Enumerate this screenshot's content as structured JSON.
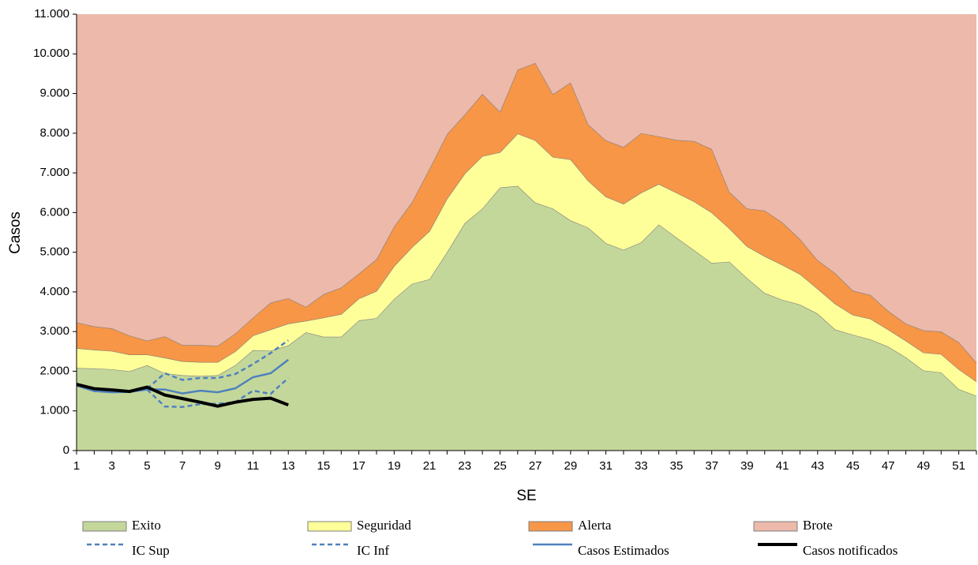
{
  "chart_data": {
    "type": "endemic-channel",
    "y_label": "Casos",
    "x_label": "SE",
    "x": [
      1,
      2,
      3,
      4,
      5,
      6,
      7,
      8,
      9,
      10,
      11,
      12,
      13,
      14,
      15,
      16,
      17,
      18,
      19,
      20,
      21,
      22,
      23,
      24,
      25,
      26,
      27,
      28,
      29,
      30,
      31,
      32,
      33,
      34,
      35,
      36,
      37,
      38,
      39,
      40,
      41,
      42,
      43,
      44,
      45,
      46,
      47,
      48,
      49,
      50,
      51,
      52
    ],
    "xlim": [
      1,
      52
    ],
    "xticks": [
      1,
      3,
      5,
      7,
      9,
      11,
      13,
      15,
      17,
      19,
      21,
      23,
      25,
      27,
      29,
      31,
      33,
      35,
      37,
      39,
      41,
      43,
      45,
      47,
      49,
      51
    ],
    "ylim": [
      0,
      11000
    ],
    "yticks": [
      0,
      {
        "value": 1000,
        "label": "1.000"
      },
      {
        "value": 2000,
        "label": "2.000"
      },
      {
        "value": 3000,
        "label": "3.000"
      },
      {
        "value": 4000,
        "label": "4.000"
      },
      {
        "value": 5000,
        "label": "5.000"
      },
      {
        "value": 6000,
        "label": "6.000"
      },
      {
        "value": 7000,
        "label": "7.000"
      },
      {
        "value": 8000,
        "label": "8.000"
      },
      {
        "value": 9000,
        "label": "9.000"
      },
      {
        "value": 10000,
        "label": "10.000"
      },
      {
        "value": 11000,
        "label": "11.000"
      }
    ],
    "series": [
      {
        "name": "Exito",
        "color": "#c4d79b",
        "values": [
          2080,
          2070,
          2050,
          2000,
          2150,
          1950,
          1900,
          1880,
          1900,
          2150,
          2530,
          2520,
          2650,
          2980,
          2870,
          2870,
          3280,
          3340,
          3820,
          4200,
          4320,
          5000,
          5730,
          6100,
          6630,
          6670,
          6250,
          6100,
          5800,
          5620,
          5230,
          5060,
          5250,
          5700,
          5370,
          5050,
          4730,
          4760,
          4350,
          3970,
          3800,
          3680,
          3450,
          3050,
          2920,
          2800,
          2620,
          2350,
          2020,
          1970,
          1550,
          1380
        ]
      },
      {
        "name": "Seguridad",
        "color": "#ffff99",
        "values": [
          500,
          470,
          460,
          420,
          270,
          390,
          350,
          350,
          330,
          350,
          370,
          530,
          550,
          290,
          480,
          570,
          550,
          680,
          830,
          920,
          1210,
          1350,
          1250,
          1320,
          890,
          1320,
          1570,
          1300,
          1540,
          1180,
          1170,
          1160,
          1250,
          1020,
          1130,
          1230,
          1270,
          840,
          800,
          930,
          880,
          770,
          630,
          650,
          500,
          520,
          430,
          420,
          450,
          460,
          500,
          360
        ]
      },
      {
        "name": "Alerta",
        "color": "#f79646",
        "values": [
          650,
          590,
          570,
          480,
          350,
          540,
          410,
          430,
          410,
          450,
          450,
          680,
          640,
          350,
          590,
          670,
          630,
          800,
          1000,
          1130,
          1570,
          1630,
          1490,
          1570,
          1020,
          1610,
          1950,
          1580,
          1940,
          1420,
          1420,
          1430,
          1500,
          1200,
          1330,
          1520,
          1600,
          920,
          950,
          1150,
          1070,
          880,
          720,
          770,
          610,
          600,
          470,
          430,
          560,
          570,
          680,
          480
        ]
      },
      {
        "name": "Brote",
        "color": "#ecb9ab",
        "values": [
          7770,
          7870,
          7920,
          8100,
          8230,
          8120,
          8340,
          8340,
          8360,
          8050,
          7650,
          7270,
          7160,
          7380,
          7060,
          6890,
          6540,
          6180,
          5350,
          4750,
          3900,
          3020,
          2530,
          2010,
          2460,
          1400,
          1230,
          2020,
          1720,
          2780,
          3180,
          3350,
          3000,
          3080,
          3170,
          3200,
          3400,
          4480,
          4900,
          4950,
          5250,
          5670,
          6200,
          6530,
          6970,
          7080,
          7480,
          7800,
          7970,
          8000,
          8270,
          8780
        ]
      }
    ],
    "lines": [
      {
        "name": "IC Sup",
        "color": "#4f81bd",
        "dashed": true,
        "x": [
          5,
          6,
          7,
          8,
          9,
          10,
          11,
          12,
          13
        ],
        "values": [
          1560,
          1950,
          1780,
          1830,
          1830,
          1930,
          2180,
          2460,
          2780
        ]
      },
      {
        "name": "IC Inf",
        "color": "#4f81bd",
        "dashed": true,
        "x": [
          5,
          6,
          7,
          8,
          9,
          10,
          11,
          12,
          13
        ],
        "values": [
          1540,
          1110,
          1100,
          1170,
          1180,
          1220,
          1510,
          1430,
          1830
        ]
      },
      {
        "name": "Casos Estimados",
        "color": "#4f81bd",
        "dashed": false,
        "x": [
          1,
          2,
          3,
          4,
          5,
          6,
          7,
          8,
          9,
          10,
          11,
          12,
          13
        ],
        "values": [
          1640,
          1500,
          1470,
          1480,
          1540,
          1540,
          1440,
          1510,
          1470,
          1570,
          1850,
          1950,
          2290
        ]
      },
      {
        "name": "Casos notificados",
        "color": "#000000",
        "dashed": false,
        "x": [
          1,
          2,
          3,
          4,
          5,
          6,
          7,
          8,
          9,
          10,
          11,
          12,
          13
        ],
        "values": [
          1670,
          1560,
          1530,
          1490,
          1600,
          1400,
          1310,
          1220,
          1120,
          1220,
          1290,
          1320,
          1150
        ]
      }
    ]
  }
}
